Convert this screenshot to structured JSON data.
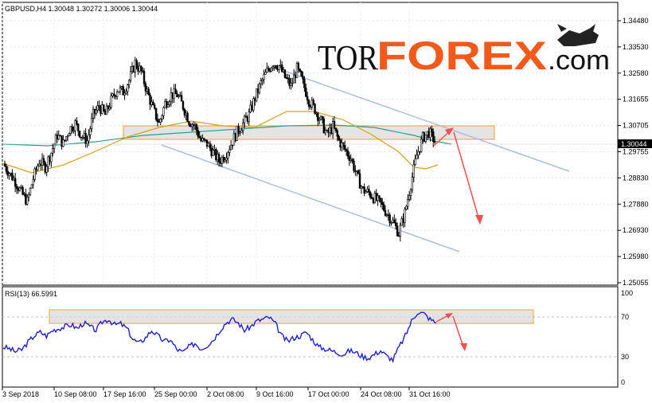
{
  "header": {
    "symbol_info": "GBPUSD,H4  1.30048  1.30272  1.30006  1.30044"
  },
  "brand": {
    "tor": "TOR",
    "forex": "FOREX",
    "com": ".com",
    "logo_icon": "bull-bear-icon"
  },
  "price_axis": {
    "labels": [
      "1.34480",
      "1.33530",
      "1.32580",
      "1.31655",
      "1.30705",
      "1.29755",
      "1.28830",
      "1.27880",
      "1.26930",
      "1.25980",
      "1.25055"
    ],
    "current_price": "1.30044"
  },
  "rsi": {
    "label": "RSI(13) 66.5991",
    "levels": [
      "100",
      "70",
      "30",
      "0"
    ]
  },
  "time_axis": {
    "labels": [
      "3 Sep 2018",
      "10 Sep 08:00",
      "17 Sep 16:00",
      "25 Sep 00:00",
      "2 Oct 08:00",
      "9 Oct 16:00",
      "17 Oct 00:00",
      "24 Oct 08:00",
      "31 Oct 16:00"
    ]
  },
  "colors": {
    "bull": "#000000",
    "bear": "#000000",
    "ma_fast": "#d4a017",
    "ma_slow": "#2e9e8e",
    "channel": "#aebfd4",
    "zone_fill": "#d9d9d9",
    "zone_border": "#f0a030",
    "arrow": "#f05050",
    "rsi_line": "#2020d0",
    "grid": "#d8d8d8"
  },
  "chart_data": {
    "type": "candlestick",
    "symbol": "GBPUSD",
    "timeframe": "H4",
    "ohlc_last": {
      "open": 1.30048,
      "high": 1.30272,
      "low": 1.30006,
      "close": 1.30044
    },
    "ylim": [
      1.25,
      1.348
    ],
    "close_path": [
      1.292,
      1.289,
      1.286,
      1.282,
      1.279,
      1.287,
      1.293,
      1.291,
      1.296,
      1.302,
      1.299,
      1.304,
      1.306,
      1.302,
      1.3,
      1.309,
      1.312,
      1.309,
      1.314,
      1.318,
      1.317,
      1.321,
      1.327,
      1.324,
      1.317,
      1.311,
      1.306,
      1.313,
      1.316,
      1.316,
      1.312,
      1.307,
      1.305,
      1.3,
      1.299,
      1.296,
      1.293,
      1.295,
      1.299,
      1.303,
      1.306,
      1.309,
      1.315,
      1.32,
      1.324,
      1.327,
      1.326,
      1.322,
      1.319,
      1.325,
      1.32,
      1.314,
      1.311,
      1.307,
      1.302,
      1.305,
      1.3,
      1.297,
      1.294,
      1.288,
      1.283,
      1.282,
      1.28,
      1.278,
      1.275,
      1.272,
      1.268,
      1.275,
      1.285,
      1.295,
      1.301,
      1.303,
      1.3
    ],
    "rsi_period": 13,
    "rsi_value": 66.5991,
    "rsi_ylim": [
      0,
      100
    ],
    "rsi_levels": [
      30,
      70
    ],
    "rsi_path": [
      40,
      38,
      35,
      37,
      45,
      52,
      56,
      52,
      58,
      60,
      62,
      64,
      60,
      66,
      62,
      58,
      67,
      70,
      64,
      65,
      60,
      48,
      44,
      50,
      58,
      52,
      46,
      48,
      38,
      34,
      40,
      44,
      38,
      42,
      48,
      58,
      66,
      70,
      66,
      58,
      62,
      68,
      70,
      72,
      65,
      52,
      46,
      50,
      52,
      56,
      48,
      40,
      38,
      36,
      34,
      32,
      36,
      34,
      30,
      28,
      32,
      36,
      30,
      26,
      40,
      52,
      68,
      78,
      76,
      70,
      66
    ]
  }
}
